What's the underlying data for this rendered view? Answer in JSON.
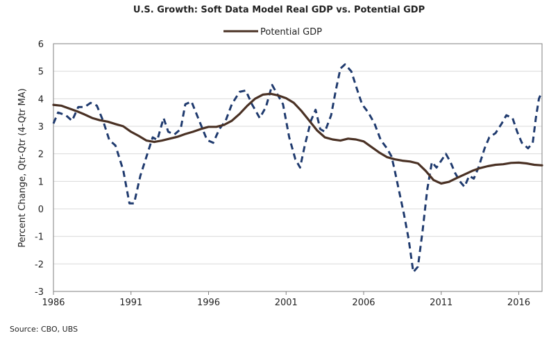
{
  "chart_data": {
    "type": "line",
    "title": "U.S. Growth: Soft Data Model Real GDP vs. Potential GDP",
    "ylabel": "Percent Change, Qtr-Qtr (4-Qtr MA)",
    "xlabel": "",
    "source": "Source: CBO, UBS",
    "xlim": [
      1986,
      2017.5
    ],
    "ylim": [
      -3,
      6
    ],
    "grid": true,
    "legend_position": "top-center",
    "x_ticks": [
      1986,
      1991,
      1996,
      2001,
      2006,
      2011,
      2016
    ],
    "x_tick_labels": [
      "1986",
      "1991",
      "1996",
      "2001",
      "2006",
      "2011",
      "2016"
    ],
    "y_ticks": [
      -3,
      -2,
      -1,
      0,
      1,
      2,
      3,
      4,
      5,
      6
    ],
    "y_tick_labels": [
      "-3",
      "-2",
      "-1",
      "0",
      "1",
      "2",
      "3",
      "4",
      "5",
      "6"
    ],
    "series": [
      {
        "name": "Soft Data Model Real GDP",
        "show_in_legend": false,
        "color": "#1f3a6e",
        "style": "dashed",
        "points": [
          [
            1986.0,
            3.1
          ],
          [
            1986.3,
            3.5
          ],
          [
            1986.8,
            3.4
          ],
          [
            1987.2,
            3.2
          ],
          [
            1987.6,
            3.7
          ],
          [
            1988.0,
            3.7
          ],
          [
            1988.4,
            3.85
          ],
          [
            1988.8,
            3.75
          ],
          [
            1989.2,
            3.2
          ],
          [
            1989.6,
            2.5
          ],
          [
            1990.0,
            2.3
          ],
          [
            1990.5,
            1.4
          ],
          [
            1990.9,
            0.2
          ],
          [
            1991.2,
            0.2
          ],
          [
            1991.6,
            1.2
          ],
          [
            1992.0,
            1.9
          ],
          [
            1992.4,
            2.6
          ],
          [
            1992.7,
            2.5
          ],
          [
            1993.1,
            3.3
          ],
          [
            1993.4,
            2.8
          ],
          [
            1993.8,
            2.7
          ],
          [
            1994.2,
            2.9
          ],
          [
            1994.5,
            3.8
          ],
          [
            1994.9,
            3.9
          ],
          [
            1995.4,
            3.2
          ],
          [
            1995.9,
            2.5
          ],
          [
            1996.3,
            2.4
          ],
          [
            1996.7,
            2.9
          ],
          [
            1997.1,
            3.2
          ],
          [
            1997.5,
            3.8
          ],
          [
            1998.0,
            4.25
          ],
          [
            1998.4,
            4.3
          ],
          [
            1998.8,
            3.8
          ],
          [
            1999.3,
            3.3
          ],
          [
            1999.7,
            3.7
          ],
          [
            2000.1,
            4.5
          ],
          [
            2000.4,
            4.2
          ],
          [
            2000.8,
            3.8
          ],
          [
            2001.2,
            2.6
          ],
          [
            2001.6,
            1.8
          ],
          [
            2001.9,
            1.5
          ],
          [
            2002.2,
            2.3
          ],
          [
            2002.6,
            3.2
          ],
          [
            2002.9,
            3.6
          ],
          [
            2003.2,
            2.9
          ],
          [
            2003.5,
            2.8
          ],
          [
            2003.9,
            3.4
          ],
          [
            2004.2,
            4.3
          ],
          [
            2004.5,
            5.1
          ],
          [
            2004.8,
            5.25
          ],
          [
            2005.2,
            5.0
          ],
          [
            2005.6,
            4.3
          ],
          [
            2005.9,
            3.8
          ],
          [
            2006.3,
            3.5
          ],
          [
            2006.7,
            3.1
          ],
          [
            2007.1,
            2.5
          ],
          [
            2007.5,
            2.2
          ],
          [
            2007.8,
            1.9
          ],
          [
            2008.0,
            1.4
          ],
          [
            2008.3,
            0.6
          ],
          [
            2008.6,
            -0.2
          ],
          [
            2008.9,
            -1.1
          ],
          [
            2009.2,
            -2.3
          ],
          [
            2009.5,
            -2.1
          ],
          [
            2009.8,
            -0.8
          ],
          [
            2010.1,
            0.7
          ],
          [
            2010.4,
            1.7
          ],
          [
            2010.7,
            1.5
          ],
          [
            2011.0,
            1.75
          ],
          [
            2011.3,
            2.0
          ],
          [
            2011.6,
            1.7
          ],
          [
            2011.9,
            1.3
          ],
          [
            2012.2,
            1.0
          ],
          [
            2012.5,
            0.8
          ],
          [
            2012.8,
            1.2
          ],
          [
            2013.1,
            1.1
          ],
          [
            2013.4,
            1.5
          ],
          [
            2013.8,
            2.2
          ],
          [
            2014.1,
            2.6
          ],
          [
            2014.5,
            2.75
          ],
          [
            2014.9,
            3.1
          ],
          [
            2015.2,
            3.4
          ],
          [
            2015.6,
            3.3
          ],
          [
            2015.9,
            2.8
          ],
          [
            2016.2,
            2.4
          ],
          [
            2016.6,
            2.2
          ],
          [
            2016.9,
            2.4
          ],
          [
            2017.1,
            3.3
          ],
          [
            2017.3,
            4.0
          ],
          [
            2017.45,
            4.2
          ]
        ]
      },
      {
        "name": "Potential GDP",
        "show_in_legend": true,
        "color": "#4a3124",
        "style": "solid",
        "points": [
          [
            1986.0,
            3.78
          ],
          [
            1986.5,
            3.75
          ],
          [
            1987.0,
            3.65
          ],
          [
            1987.5,
            3.55
          ],
          [
            1988.0,
            3.43
          ],
          [
            1988.5,
            3.3
          ],
          [
            1989.0,
            3.22
          ],
          [
            1989.5,
            3.17
          ],
          [
            1990.0,
            3.08
          ],
          [
            1990.5,
            3.0
          ],
          [
            1991.0,
            2.8
          ],
          [
            1991.5,
            2.65
          ],
          [
            1992.0,
            2.48
          ],
          [
            1992.5,
            2.43
          ],
          [
            1993.0,
            2.48
          ],
          [
            1993.5,
            2.55
          ],
          [
            1994.0,
            2.62
          ],
          [
            1994.5,
            2.72
          ],
          [
            1995.0,
            2.8
          ],
          [
            1995.5,
            2.9
          ],
          [
            1996.0,
            2.98
          ],
          [
            1996.5,
            2.98
          ],
          [
            1997.0,
            3.05
          ],
          [
            1997.5,
            3.2
          ],
          [
            1998.0,
            3.45
          ],
          [
            1998.5,
            3.75
          ],
          [
            1999.0,
            4.0
          ],
          [
            1999.5,
            4.15
          ],
          [
            2000.0,
            4.18
          ],
          [
            2000.5,
            4.12
          ],
          [
            2001.0,
            4.02
          ],
          [
            2001.5,
            3.85
          ],
          [
            2002.0,
            3.55
          ],
          [
            2002.5,
            3.2
          ],
          [
            2003.0,
            2.85
          ],
          [
            2003.5,
            2.6
          ],
          [
            2004.0,
            2.52
          ],
          [
            2004.5,
            2.48
          ],
          [
            2005.0,
            2.55
          ],
          [
            2005.5,
            2.52
          ],
          [
            2006.0,
            2.45
          ],
          [
            2006.5,
            2.25
          ],
          [
            2007.0,
            2.05
          ],
          [
            2007.5,
            1.88
          ],
          [
            2008.0,
            1.8
          ],
          [
            2008.5,
            1.75
          ],
          [
            2009.0,
            1.72
          ],
          [
            2009.5,
            1.65
          ],
          [
            2010.0,
            1.38
          ],
          [
            2010.5,
            1.05
          ],
          [
            2011.0,
            0.92
          ],
          [
            2011.5,
            0.98
          ],
          [
            2012.0,
            1.12
          ],
          [
            2012.5,
            1.25
          ],
          [
            2013.0,
            1.38
          ],
          [
            2013.5,
            1.48
          ],
          [
            2014.0,
            1.55
          ],
          [
            2014.5,
            1.6
          ],
          [
            2015.0,
            1.62
          ],
          [
            2015.5,
            1.67
          ],
          [
            2016.0,
            1.68
          ],
          [
            2016.5,
            1.65
          ],
          [
            2017.0,
            1.6
          ],
          [
            2017.5,
            1.58
          ]
        ]
      }
    ]
  }
}
